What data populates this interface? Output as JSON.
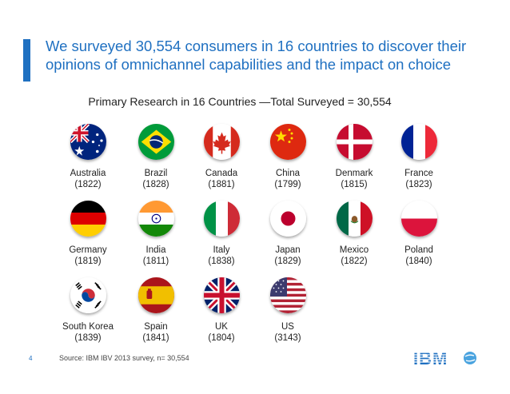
{
  "headline": "We surveyed 30,554 consumers in 16 countries to discover their opinions of omnichannel capabilities and the impact on choice",
  "subtitle": "Primary Research in 16 Countries —Total Surveyed = 30,554",
  "countries": [
    {
      "name": "Australia",
      "count": "(1822)",
      "flag": "australia-flag-icon"
    },
    {
      "name": "Brazil",
      "count": "(1828)",
      "flag": "brazil-flag-icon"
    },
    {
      "name": "Canada",
      "count": "(1881)",
      "flag": "canada-flag-icon"
    },
    {
      "name": "China",
      "count": "(1799)",
      "flag": "china-flag-icon"
    },
    {
      "name": "Denmark",
      "count": "(1815)",
      "flag": "denmark-flag-icon"
    },
    {
      "name": "France",
      "count": "(1823)",
      "flag": "france-flag-icon"
    },
    {
      "name": "Germany",
      "count": "(1819)",
      "flag": "germany-flag-icon"
    },
    {
      "name": "India",
      "count": "(1811)",
      "flag": "india-flag-icon"
    },
    {
      "name": "Italy",
      "count": "(1838)",
      "flag": "italy-flag-icon"
    },
    {
      "name": "Japan",
      "count": "(1829)",
      "flag": "japan-flag-icon"
    },
    {
      "name": "Mexico",
      "count": "(1822)",
      "flag": "mexico-flag-icon"
    },
    {
      "name": "Poland",
      "count": "(1840)",
      "flag": "poland-flag-icon"
    },
    {
      "name": "South Korea",
      "count": "(1839)",
      "flag": "south-korea-flag-icon"
    },
    {
      "name": "Spain",
      "count": "(1841)",
      "flag": "spain-flag-icon"
    },
    {
      "name": "UK",
      "count": "(1804)",
      "flag": "uk-flag-icon"
    },
    {
      "name": "US",
      "count": "(3143)",
      "flag": "us-flag-icon"
    }
  ],
  "footer": {
    "page_number": "4",
    "source": "Source: IBM IBV 2013 survey, n= 30,554"
  },
  "logo": {
    "name": "ibm-logo",
    "text": "IBM"
  },
  "colors": {
    "accent": "#1f70c1",
    "text": "#222222"
  }
}
